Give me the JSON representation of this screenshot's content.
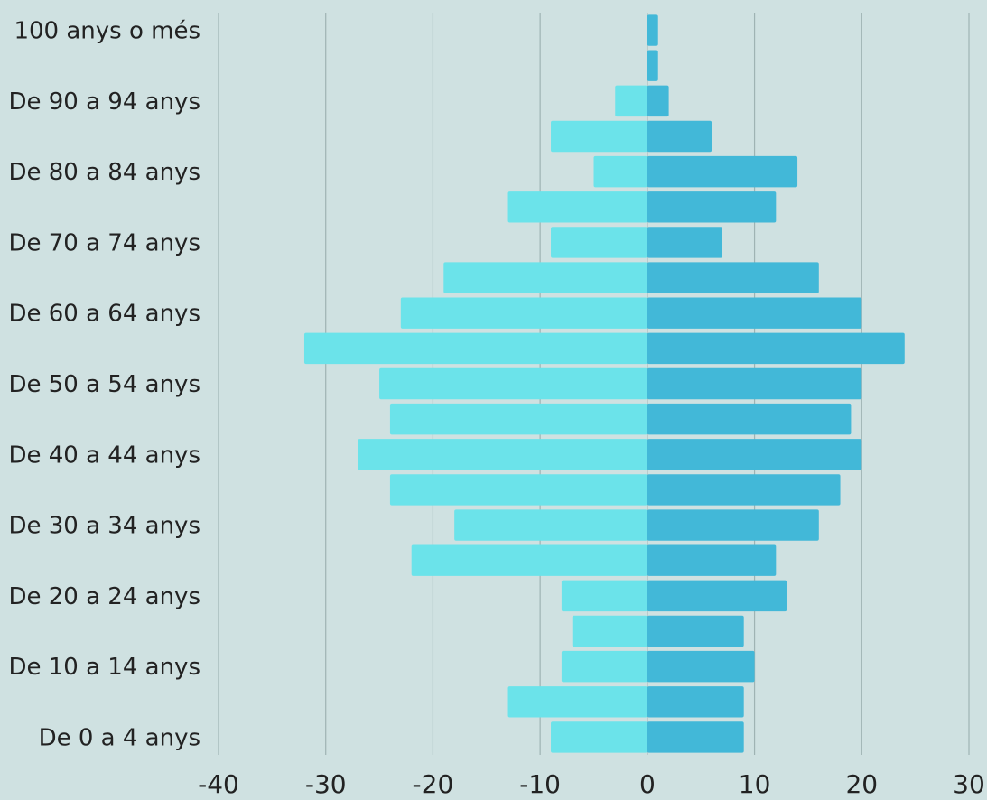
{
  "chart_data": {
    "type": "bar",
    "orientation": "horizontal",
    "title": "",
    "xlabel": "",
    "ylabel": "",
    "xlim": [
      -40,
      30
    ],
    "x_ticks": [
      -40,
      -30,
      -20,
      -10,
      0,
      10,
      20,
      30
    ],
    "grid": true,
    "categories": [
      "100 anys o més",
      "",
      "De 90 a 94 anys",
      "",
      "De 80 a 84 anys",
      "",
      "De 70 a 74 anys",
      "",
      "De 60 a 64 anys",
      "",
      "De 50 a 54 anys",
      "",
      "De 40 a 44 anys",
      "",
      "De 30 a 34 anys",
      "",
      "De 20 a 24 anys",
      "",
      "De 10 a 14 anys",
      "",
      "De 0 a 4 anys"
    ],
    "series": [
      {
        "color": "#6be3ea",
        "values": [
          0,
          0,
          -3,
          -9,
          -5,
          -13,
          -9,
          -19,
          -23,
          -32,
          -25,
          -24,
          -27,
          -24,
          -18,
          -22,
          -8,
          -7,
          -8,
          -13,
          -9
        ]
      },
      {
        "color": "#42b8d8",
        "values": [
          1,
          1,
          2,
          6,
          14,
          12,
          7,
          16,
          20,
          24,
          20,
          19,
          20,
          18,
          16,
          12,
          13,
          9,
          10,
          9,
          9
        ]
      }
    ],
    "colors": {
      "background": "#cfe1e1",
      "gridline": "#9fb3b3"
    }
  }
}
